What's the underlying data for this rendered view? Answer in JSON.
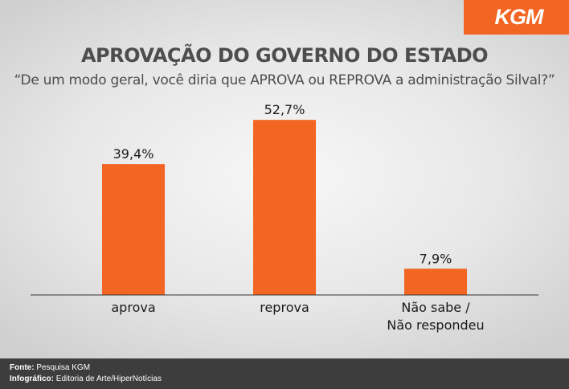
{
  "brand": {
    "logo_text": "KGM",
    "accent_color": "#f26522"
  },
  "header": {
    "title": "APROVAÇÃO DO GOVERNO DO ESTADO",
    "subtitle": "“De um modo geral, você diria que APROVA ou REPROVA a administração Silval?”"
  },
  "chart_data": {
    "type": "bar",
    "categories": [
      [
        "aprova"
      ],
      [
        "reprova"
      ],
      [
        "Não sabe /",
        "Não respondeu"
      ]
    ],
    "values": [
      39.4,
      52.7,
      7.9
    ],
    "value_labels": [
      "39,4%",
      "52,7%",
      "7,9%"
    ],
    "ylim": [
      0,
      60
    ],
    "grid": false,
    "bar_color": "#f26522"
  },
  "footer": {
    "source_label": "Fonte:",
    "source_value": "Pesquisa KGM",
    "infographic_label": "Infográfico:",
    "infographic_value": "Editoria de Arte/HiperNotícias"
  }
}
